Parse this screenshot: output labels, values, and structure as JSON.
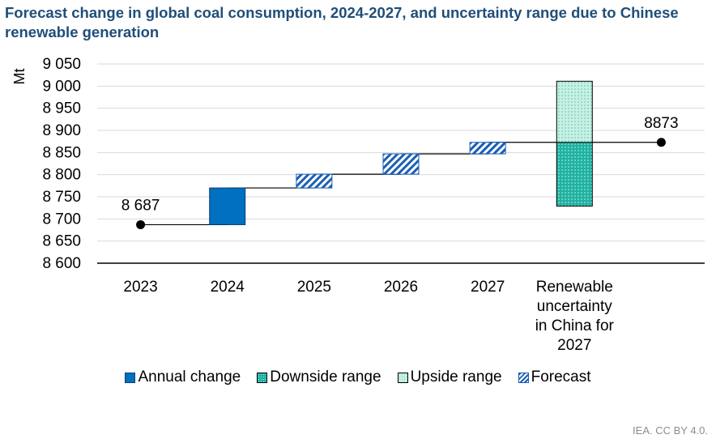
{
  "title": "Forecast change in global coal consumption, 2024-2027, and uncertainty range due to Chinese renewable generation",
  "credit": "IEA. CC BY 4.0.",
  "colors": {
    "annual": "#0070c0",
    "forecast": "#1a5fb4",
    "downside": "#20b2a0",
    "upside": "#c8f0e4",
    "title": "#1f4e79"
  },
  "legend": [
    {
      "key": "annual",
      "label": "Annual change"
    },
    {
      "key": "down",
      "label": "Downside range"
    },
    {
      "key": "up",
      "label": "Upside range"
    },
    {
      "key": "fc",
      "label": "Forecast"
    }
  ],
  "chart_data": {
    "type": "bar",
    "subtype": "waterfall",
    "ylabel": "Mt",
    "ylim": [
      8600,
      9050
    ],
    "yticks": [
      8600,
      8650,
      8700,
      8750,
      8800,
      8850,
      8900,
      8950,
      9000,
      9050
    ],
    "ytick_labels": [
      "8 600",
      "8 650",
      "8 700",
      "8 750",
      "8 800",
      "8 850",
      "8 900",
      "8 950",
      "9 000",
      "9 050"
    ],
    "categories": [
      "2023",
      "2024",
      "2025",
      "2026",
      "2027",
      "Renewable uncertainty in China for 2027",
      ""
    ],
    "category_label_lines": [
      [
        "2023"
      ],
      [
        "2024"
      ],
      [
        "2025"
      ],
      [
        "2026"
      ],
      [
        "2027"
      ],
      [
        "Renewable",
        "uncertainty",
        "in China for",
        "2027"
      ],
      []
    ],
    "start": {
      "category": "2023",
      "value": 8687,
      "label": "8 687"
    },
    "end": {
      "value": 8873,
      "label": "8873"
    },
    "bars": [
      {
        "category": "2024",
        "series": "Annual change",
        "from": 8687,
        "to": 8770
      },
      {
        "category": "2025",
        "series": "Forecast",
        "from": 8770,
        "to": 8801
      },
      {
        "category": "2026",
        "series": "Forecast",
        "from": 8801,
        "to": 8847
      },
      {
        "category": "2027",
        "series": "Forecast",
        "from": 8847,
        "to": 8873
      },
      {
        "category": "Renewable uncertainty in China for 2027",
        "series": "Downside range",
        "from": 8729,
        "to": 8873
      },
      {
        "category": "Renewable uncertainty in China for 2027",
        "series": "Upside range",
        "from": 8873,
        "to": 9011
      }
    ],
    "connector": [
      {
        "category": "2023",
        "value": 8687
      },
      {
        "category": "2024",
        "value": 8687
      },
      {
        "category": "2024",
        "value": 8770
      },
      {
        "category": "2025",
        "value": 8770
      },
      {
        "category": "2025",
        "value": 8801
      },
      {
        "category": "2026",
        "value": 8801
      },
      {
        "category": "2026",
        "value": 8847
      },
      {
        "category": "2027",
        "value": 8847
      },
      {
        "category": "2027",
        "value": 8873
      },
      {
        "category": "",
        "value": 8873
      }
    ],
    "grid": true,
    "legend_position": "bottom"
  }
}
